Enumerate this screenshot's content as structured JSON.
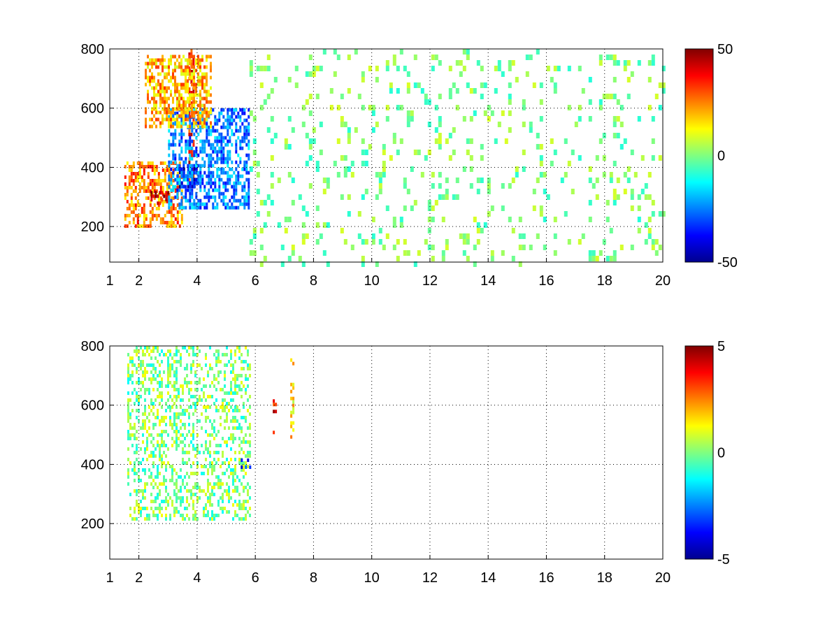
{
  "chart_data": [
    {
      "type": "heatmap",
      "title": "",
      "xlabel": "",
      "ylabel": "",
      "xlim": [
        1,
        20
      ],
      "ylim": [
        80,
        800
      ],
      "grid": true,
      "x_ticks": [
        "1",
        "2",
        "4",
        "6",
        "8",
        "10",
        "12",
        "14",
        "16",
        "18",
        "20"
      ],
      "x_tick_values": [
        1,
        2,
        4,
        6,
        8,
        10,
        12,
        14,
        16,
        18,
        20
      ],
      "y_ticks": [
        "200",
        "400",
        "600",
        "800"
      ],
      "y_tick_values": [
        200,
        400,
        600,
        800
      ],
      "colorbar": {
        "min": -50,
        "max": 50,
        "ticks": [
          "50",
          "0",
          "-50"
        ],
        "tick_values": [
          50,
          0,
          -50
        ],
        "colormap": "jet"
      },
      "features": [
        {
          "x": [
            1.5,
            3.5
          ],
          "y": [
            200,
            420
          ],
          "value": 25
        },
        {
          "x": [
            2.4,
            3.0
          ],
          "y": [
            280,
            320
          ],
          "value": 40
        },
        {
          "x": [
            3.7,
            3.9
          ],
          "y": [
            360,
            800
          ],
          "value": 35
        },
        {
          "x": [
            3.3,
            4.0
          ],
          "y": [
            340,
            400
          ],
          "value": -40
        },
        {
          "x": [
            3.0,
            5.8
          ],
          "y": [
            260,
            600
          ],
          "value": -25
        },
        {
          "x": [
            2.2,
            4.5
          ],
          "y": [
            540,
            780
          ],
          "value": 20
        },
        {
          "x": [
            5.8,
            20
          ],
          "y": [
            80,
            800
          ],
          "value": 0
        }
      ]
    },
    {
      "type": "heatmap",
      "title": "",
      "xlabel": "",
      "ylabel": "",
      "xlim": [
        1,
        20
      ],
      "ylim": [
        80,
        800
      ],
      "grid": true,
      "x_ticks": [
        "1",
        "2",
        "4",
        "6",
        "8",
        "10",
        "12",
        "14",
        "16",
        "18",
        "20"
      ],
      "x_tick_values": [
        1,
        2,
        4,
        6,
        8,
        10,
        12,
        14,
        16,
        18,
        20
      ],
      "y_ticks": [
        "200",
        "400",
        "600",
        "800"
      ],
      "y_tick_values": [
        200,
        400,
        600,
        800
      ],
      "colorbar": {
        "min": -5,
        "max": 5,
        "ticks": [
          "5",
          "0",
          "-5"
        ],
        "tick_values": [
          5,
          0,
          -5
        ],
        "colormap": "jet"
      },
      "features": [
        {
          "x": [
            1.6,
            5.8
          ],
          "y": [
            210,
            800
          ],
          "value": 0
        },
        {
          "x": [
            5.5,
            5.8
          ],
          "y": [
            390,
            420
          ],
          "value": -3
        },
        {
          "x": [
            6.6,
            6.7
          ],
          "y": [
            470,
            620
          ],
          "value": 4
        },
        {
          "x": [
            7.2,
            7.3
          ],
          "y": [
            490,
            770
          ],
          "value": 1.5
        }
      ]
    }
  ]
}
